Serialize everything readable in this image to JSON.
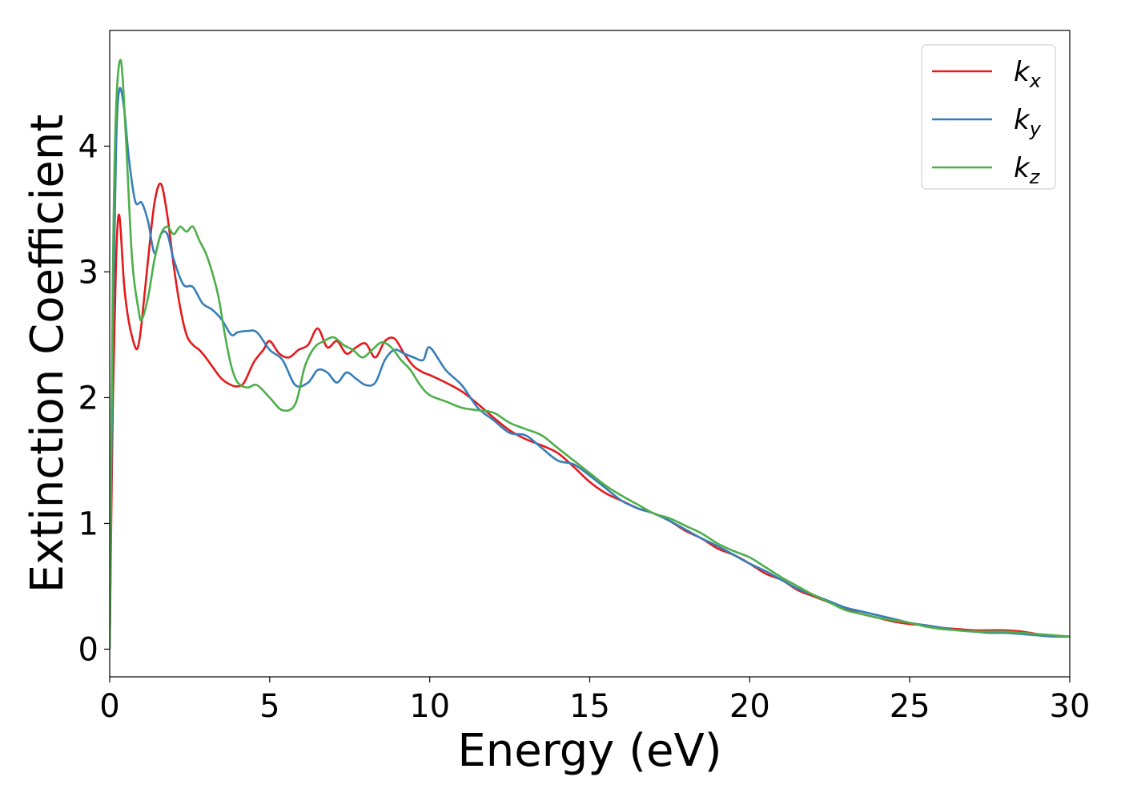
{
  "chart_data": {
    "type": "line",
    "title": "",
    "xlabel": "Energy (eV)",
    "ylabel": "Extinction Coefficient",
    "xlim": [
      0,
      30
    ],
    "ylim": [
      -0.22,
      4.92
    ],
    "xticks": [
      "0",
      "5",
      "10",
      "15",
      "20",
      "25",
      "30"
    ],
    "yticks": [
      "0",
      "1",
      "2",
      "3",
      "4"
    ],
    "grid": false,
    "legend_position": "top-right",
    "series": [
      {
        "name": "k",
        "subscript": "x",
        "color": "#e41a1c",
        "x": [
          0,
          0.1,
          0.2,
          0.3,
          0.45,
          0.6,
          0.8,
          0.9,
          1.0,
          1.2,
          1.4,
          1.6,
          1.8,
          2.0,
          2.2,
          2.4,
          2.6,
          2.8,
          3.0,
          3.2,
          3.5,
          3.8,
          4.0,
          4.2,
          4.5,
          4.8,
          5.0,
          5.3,
          5.6,
          5.9,
          6.2,
          6.5,
          6.8,
          7.1,
          7.4,
          7.7,
          8.0,
          8.3,
          8.6,
          8.9,
          9.2,
          9.5,
          9.8,
          10.0,
          10.5,
          11.0,
          11.5,
          12.0,
          12.5,
          13.0,
          13.5,
          14.0,
          14.5,
          15.0,
          15.5,
          16.0,
          16.5,
          17.0,
          17.5,
          18.0,
          18.5,
          19.0,
          19.5,
          20.0,
          20.5,
          21.0,
          21.5,
          22.0,
          22.5,
          23.0,
          23.5,
          24.0,
          24.5,
          25.0,
          25.5,
          26.0,
          26.5,
          27.0,
          27.5,
          28.0,
          28.5,
          29.0,
          29.5,
          30.0
        ],
        "y": [
          0.0,
          2.0,
          3.1,
          3.45,
          2.9,
          2.6,
          2.4,
          2.42,
          2.6,
          3.1,
          3.55,
          3.7,
          3.45,
          3.05,
          2.72,
          2.5,
          2.42,
          2.38,
          2.32,
          2.25,
          2.15,
          2.1,
          2.09,
          2.12,
          2.28,
          2.38,
          2.45,
          2.35,
          2.32,
          2.38,
          2.42,
          2.55,
          2.4,
          2.45,
          2.35,
          2.4,
          2.43,
          2.32,
          2.45,
          2.47,
          2.35,
          2.25,
          2.2,
          2.18,
          2.12,
          2.05,
          1.95,
          1.84,
          1.74,
          1.67,
          1.62,
          1.56,
          1.45,
          1.33,
          1.24,
          1.18,
          1.12,
          1.08,
          1.02,
          0.94,
          0.88,
          0.8,
          0.75,
          0.68,
          0.6,
          0.55,
          0.47,
          0.42,
          0.37,
          0.32,
          0.28,
          0.25,
          0.22,
          0.2,
          0.19,
          0.17,
          0.16,
          0.15,
          0.15,
          0.15,
          0.14,
          0.12,
          0.11,
          0.1
        ]
      },
      {
        "name": "k",
        "subscript": "y",
        "color": "#377eb8",
        "x": [
          0,
          0.1,
          0.2,
          0.3,
          0.45,
          0.6,
          0.8,
          1.0,
          1.2,
          1.4,
          1.6,
          1.8,
          2.0,
          2.3,
          2.6,
          2.9,
          3.2,
          3.5,
          3.8,
          4.0,
          4.3,
          4.6,
          5.0,
          5.4,
          5.8,
          6.2,
          6.5,
          6.8,
          7.1,
          7.4,
          7.7,
          8.0,
          8.3,
          8.6,
          8.9,
          9.2,
          9.5,
          9.8,
          10.0,
          10.5,
          11.0,
          11.5,
          12.0,
          12.5,
          13.0,
          13.5,
          14.0,
          14.5,
          15.0,
          15.5,
          16.0,
          16.5,
          17.0,
          17.5,
          18.0,
          18.5,
          19.0,
          19.5,
          20.0,
          20.5,
          21.0,
          21.5,
          22.0,
          22.5,
          23.0,
          23.5,
          24.0,
          24.5,
          25.0,
          25.5,
          26.0,
          26.5,
          27.0,
          27.5,
          28.0,
          28.5,
          29.0,
          29.5,
          30.0
        ],
        "y": [
          0.0,
          2.6,
          4.0,
          4.45,
          4.3,
          3.9,
          3.56,
          3.55,
          3.4,
          3.15,
          3.3,
          3.3,
          3.1,
          2.9,
          2.88,
          2.75,
          2.7,
          2.62,
          2.5,
          2.52,
          2.53,
          2.52,
          2.38,
          2.3,
          2.1,
          2.12,
          2.22,
          2.2,
          2.12,
          2.2,
          2.15,
          2.1,
          2.12,
          2.3,
          2.38,
          2.35,
          2.32,
          2.3,
          2.4,
          2.22,
          2.1,
          1.92,
          1.82,
          1.72,
          1.7,
          1.6,
          1.5,
          1.47,
          1.38,
          1.28,
          1.18,
          1.12,
          1.08,
          1.02,
          0.95,
          0.88,
          0.82,
          0.75,
          0.68,
          0.62,
          0.55,
          0.48,
          0.43,
          0.38,
          0.33,
          0.3,
          0.27,
          0.24,
          0.21,
          0.19,
          0.17,
          0.15,
          0.14,
          0.13,
          0.13,
          0.12,
          0.11,
          0.1,
          0.1
        ]
      },
      {
        "name": "k",
        "subscript": "z",
        "color": "#4daf4a",
        "x": [
          0,
          0.1,
          0.2,
          0.35,
          0.5,
          0.7,
          0.9,
          1.0,
          1.2,
          1.4,
          1.6,
          1.8,
          2.0,
          2.2,
          2.4,
          2.6,
          2.8,
          3.0,
          3.2,
          3.4,
          3.6,
          3.8,
          4.0,
          4.3,
          4.6,
          5.0,
          5.4,
          5.8,
          6.1,
          6.4,
          6.7,
          7.0,
          7.3,
          7.6,
          7.9,
          8.2,
          8.5,
          8.8,
          9.1,
          9.4,
          9.7,
          10.0,
          10.5,
          11.0,
          11.5,
          12.0,
          12.5,
          13.0,
          13.5,
          14.0,
          14.5,
          15.0,
          15.5,
          16.0,
          16.5,
          17.0,
          17.5,
          18.0,
          18.5,
          19.0,
          19.5,
          20.0,
          20.5,
          21.0,
          21.5,
          22.0,
          22.5,
          23.0,
          23.5,
          24.0,
          24.5,
          25.0,
          25.5,
          26.0,
          26.5,
          27.0,
          27.5,
          28.0,
          28.5,
          29.0,
          29.5,
          30.0
        ],
        "y": [
          0.0,
          3.0,
          4.3,
          4.68,
          4.1,
          3.1,
          2.7,
          2.62,
          2.8,
          3.1,
          3.3,
          3.36,
          3.3,
          3.36,
          3.32,
          3.36,
          3.25,
          3.15,
          3.0,
          2.8,
          2.5,
          2.25,
          2.12,
          2.08,
          2.1,
          2.0,
          1.9,
          1.95,
          2.25,
          2.4,
          2.45,
          2.48,
          2.42,
          2.38,
          2.32,
          2.38,
          2.44,
          2.4,
          2.3,
          2.22,
          2.1,
          2.02,
          1.97,
          1.92,
          1.9,
          1.88,
          1.8,
          1.75,
          1.7,
          1.6,
          1.5,
          1.4,
          1.3,
          1.22,
          1.15,
          1.08,
          1.04,
          0.98,
          0.92,
          0.84,
          0.78,
          0.73,
          0.65,
          0.57,
          0.5,
          0.43,
          0.37,
          0.31,
          0.28,
          0.25,
          0.23,
          0.21,
          0.18,
          0.16,
          0.15,
          0.14,
          0.14,
          0.14,
          0.13,
          0.12,
          0.11,
          0.1
        ]
      }
    ]
  }
}
